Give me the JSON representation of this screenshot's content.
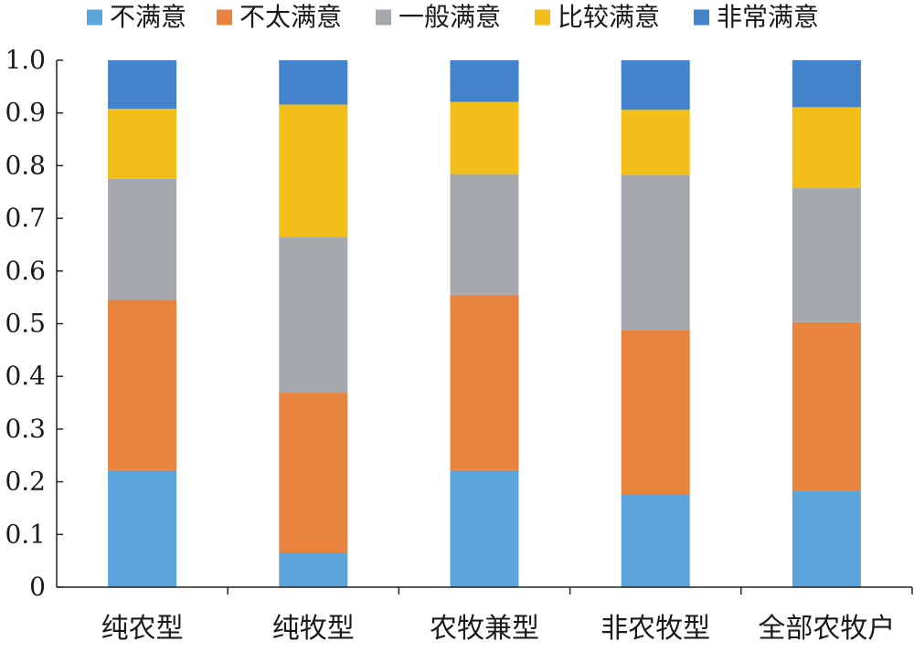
{
  "chart_data": {
    "type": "bar",
    "stacked": true,
    "categories": [
      "纯农型",
      "纯牧型",
      "农牧兼型",
      "非农牧型",
      "全部农牧户"
    ],
    "series": [
      {
        "name": "不满意",
        "color": "#5ba4dc",
        "values": [
          0.222,
          0.065,
          0.222,
          0.175,
          0.183
        ]
      },
      {
        "name": "不太满意",
        "color": "#e8843e",
        "values": [
          0.323,
          0.304,
          0.333,
          0.312,
          0.32
        ]
      },
      {
        "name": "一般满意",
        "color": "#a5a8ad",
        "values": [
          0.23,
          0.296,
          0.229,
          0.296,
          0.255
        ]
      },
      {
        "name": "比较满意",
        "color": "#f2bf1a",
        "values": [
          0.133,
          0.251,
          0.137,
          0.123,
          0.153
        ]
      },
      {
        "name": "非常满意",
        "color": "#4383cb",
        "values": [
          0.092,
          0.084,
          0.079,
          0.094,
          0.089
        ]
      }
    ],
    "ylim": [
      0,
      1.0
    ],
    "yticks": [
      "0",
      "0.1",
      "0.2",
      "0.3",
      "0.4",
      "0.5",
      "0.6",
      "0.7",
      "0.8",
      "0.9",
      "1.0"
    ],
    "grid": false,
    "legend_position": "top",
    "xlabel": "",
    "ylabel": "",
    "title": ""
  }
}
